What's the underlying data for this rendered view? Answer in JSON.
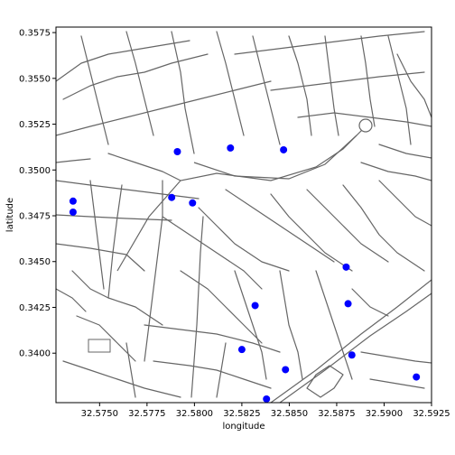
{
  "chart_data": {
    "type": "scatter",
    "title": "",
    "xlabel": "longitude",
    "ylabel": "latitude",
    "xlim": [
      32.5727,
      32.5925
    ],
    "ylim": [
      32.5727,
      32.5925
    ],
    "lat_lim": [
      0.3373,
      0.3578
    ],
    "xticks": [
      "32.5750",
      "32.5775",
      "32.5800",
      "32.5825",
      "32.5850",
      "32.5875",
      "32.5900",
      "32.5925"
    ],
    "xtick_values": [
      32.575,
      32.5775,
      32.58,
      32.5825,
      32.585,
      32.5875,
      32.59,
      32.5925
    ],
    "yticks": [
      "0.3400",
      "0.3425",
      "0.3450",
      "0.3475",
      "0.3500",
      "0.3525",
      "0.3550",
      "0.3575"
    ],
    "ytick_values": [
      0.34,
      0.3425,
      0.345,
      0.3475,
      0.35,
      0.3525,
      0.355,
      0.3575
    ],
    "grid": false,
    "legend": "none",
    "point_color": "#0000ff",
    "road_color": "#666666",
    "points": [
      {
        "x": 32.5736,
        "y": 0.3483
      },
      {
        "x": 32.5736,
        "y": 0.3477
      },
      {
        "x": 32.5791,
        "y": 0.351
      },
      {
        "x": 32.5788,
        "y": 0.3485
      },
      {
        "x": 32.5799,
        "y": 0.3482
      },
      {
        "x": 32.5819,
        "y": 0.3512
      },
      {
        "x": 32.5847,
        "y": 0.3511
      },
      {
        "x": 32.5832,
        "y": 0.3426
      },
      {
        "x": 32.5825,
        "y": 0.3402
      },
      {
        "x": 32.5838,
        "y": 0.3375
      },
      {
        "x": 32.5848,
        "y": 0.3391
      },
      {
        "x": 32.588,
        "y": 0.3447
      },
      {
        "x": 32.5881,
        "y": 0.3427
      },
      {
        "x": 32.5883,
        "y": 0.3399
      },
      {
        "x": 32.5917,
        "y": 0.3387
      }
    ]
  }
}
